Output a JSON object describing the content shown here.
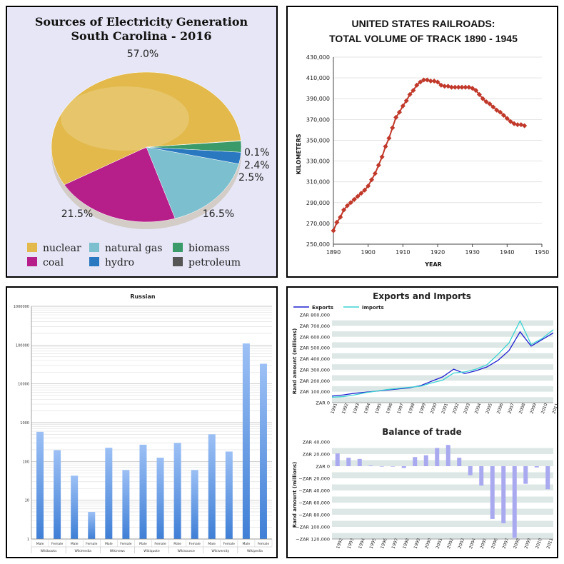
{
  "panels": {
    "pie": {
      "chart_data": {
        "type": "pie",
        "title": "Sources of Electricity Generation",
        "subtitle": "South Carolina - 2016",
        "categories": [
          "nuclear",
          "natural gas",
          "hydro",
          "biomass",
          "coal",
          "petroleum"
        ],
        "values": [
          57.0,
          16.5,
          2.5,
          2.4,
          21.5,
          0.1
        ],
        "labels": [
          "57.0%",
          "16.5%",
          "2.5%",
          "2.4%",
          "21.5%",
          "0.1%"
        ],
        "legend": [
          "nuclear",
          "natural gas",
          "biomass",
          "coal",
          "hydro",
          "petroleum"
        ],
        "legend_position": "bottom"
      },
      "colors": {
        "nuclear": "#e2b94a",
        "natural gas": "#7cc0cf",
        "hydro": "#2a78c0",
        "biomass": "#3a9a6a",
        "coal": "#b61e8a",
        "petroleum": "#555555"
      }
    },
    "railroads": {
      "chart_data": {
        "type": "line",
        "title": "UNITED STATES RAILROADS:",
        "subtitle": "TOTAL VOLUME OF TRACK 1890 - 1945",
        "xlabel": "YEAR",
        "ylabel": "KILOMETERS",
        "xlim": [
          1890,
          1950
        ],
        "ylim": [
          250000,
          430000
        ],
        "xticks": [
          "1890",
          "1900",
          "1910",
          "1920",
          "1930",
          "1940",
          "1950"
        ],
        "yticks": [
          "250,000",
          "270,000",
          "290,000",
          "310,000",
          "330,000",
          "350,000",
          "370,000",
          "390,000",
          "410,000",
          "430,000"
        ],
        "x": [
          1890,
          1891,
          1892,
          1893,
          1894,
          1895,
          1896,
          1897,
          1898,
          1899,
          1900,
          1901,
          1902,
          1903,
          1904,
          1905,
          1906,
          1907,
          1908,
          1909,
          1910,
          1911,
          1912,
          1913,
          1914,
          1915,
          1916,
          1917,
          1918,
          1919,
          1920,
          1921,
          1922,
          1923,
          1924,
          1925,
          1926,
          1927,
          1928,
          1929,
          1930,
          1931,
          1932,
          1933,
          1934,
          1935,
          1936,
          1937,
          1938,
          1939,
          1940,
          1941,
          1942,
          1943,
          1944,
          1945
        ],
        "y": [
          263000,
          271000,
          276000,
          283000,
          287000,
          290000,
          293000,
          296000,
          299000,
          302000,
          306000,
          312000,
          318000,
          326000,
          334000,
          344000,
          352000,
          362000,
          372000,
          377000,
          383000,
          388000,
          394000,
          398000,
          403000,
          406000,
          408000,
          408000,
          407000,
          407000,
          406000,
          403000,
          402000,
          402000,
          401000,
          401000,
          401000,
          401000,
          401000,
          401000,
          400000,
          398000,
          394000,
          390000,
          387000,
          385000,
          382000,
          379000,
          377000,
          374000,
          371000,
          368000,
          366000,
          365000,
          365000,
          364000
        ],
        "color": "#c0392b"
      }
    },
    "russian": {
      "chart_data": {
        "type": "bar",
        "title": "Russian",
        "yscale": "log",
        "ylim": [
          1,
          1000000
        ],
        "yticks": [
          "1",
          "10",
          "100",
          "1000",
          "10000",
          "100000",
          "1000000"
        ],
        "categories": [
          "Male",
          "Female",
          "Male",
          "Female",
          "Male",
          "Female",
          "Male",
          "Female",
          "Male",
          "Female",
          "Male",
          "Female",
          "Male",
          "Female"
        ],
        "groups": [
          "Wikibooks",
          "Wikimedia",
          "Wikinews",
          "Wikiquote",
          "Wikisource",
          "Wikiversity",
          "Wikipedia"
        ],
        "values": [
          580,
          195,
          43,
          5,
          225,
          60,
          270,
          125,
          300,
          60,
          500,
          180,
          110000,
          33000
        ]
      }
    },
    "trade": {
      "top": {
        "chart_data": {
          "type": "line",
          "title": "Exports and Imports",
          "ylabel": "Rand amount (millions)",
          "legend": [
            "Exports",
            "Imports"
          ],
          "legend_position": "top-left",
          "categories": [
            "1991",
            "1992",
            "1993",
            "1994",
            "1995",
            "1996",
            "1997",
            "1998",
            "1999",
            "2000",
            "2001",
            "2002",
            "2003",
            "2004",
            "2005",
            "2006",
            "2007",
            "2008",
            "2009",
            "2010",
            "2011"
          ],
          "yticks": [
            "ZAR 0",
            "ZAR 100,000",
            "ZAR 200,000",
            "ZAR 300,000",
            "ZAR 400,000",
            "ZAR 500,000",
            "ZAR 600,000",
            "ZAR 700,000",
            "ZAR 800,000"
          ],
          "ylim": [
            0,
            800000
          ],
          "series": [
            {
              "name": "Exports",
              "color": "#1f1fcf",
              "values": [
                60000,
                70000,
                85000,
                95000,
                105000,
                115000,
                125000,
                135000,
                155000,
                195000,
                235000,
                305000,
                265000,
                290000,
                325000,
                385000,
                475000,
                645000,
                515000,
                575000,
                635000
              ]
            },
            {
              "name": "Imports",
              "color": "#3cd2d2",
              "values": [
                50000,
                55000,
                70000,
                90000,
                105000,
                120000,
                130000,
                140000,
                150000,
                180000,
                205000,
                270000,
                280000,
                305000,
                345000,
                440000,
                545000,
                745000,
                530000,
                585000,
                665000
              ]
            }
          ]
        }
      },
      "bottom": {
        "chart_data": {
          "type": "bar",
          "title": "Balance of trade",
          "ylabel": "Rand amount (millions)",
          "categories": [
            "1992",
            "1993",
            "1994",
            "1995",
            "1996",
            "1997",
            "1998",
            "1999",
            "2000",
            "2001",
            "2002",
            "2003",
            "2004",
            "2005",
            "2006",
            "2007",
            "2008",
            "2009",
            "2010",
            "2011"
          ],
          "yticks": [
            "ZAR 40,000",
            "ZAR 20,000",
            "ZAR 0",
            "−ZAR 20,000",
            "−ZAR 40,000",
            "−ZAR 60,000",
            "−ZAR 80,000",
            "−ZAR 100,000",
            "−ZAR 120,000"
          ],
          "ylim": [
            -120000,
            40000
          ],
          "values": [
            21000,
            14000,
            12000,
            1000,
            -500,
            -500,
            -3000,
            15000,
            18000,
            30000,
            35000,
            14000,
            -15000,
            -32000,
            -87000,
            -94000,
            -118000,
            -29000,
            -2000,
            -38000
          ],
          "color": "#a9a9f0"
        }
      }
    }
  }
}
